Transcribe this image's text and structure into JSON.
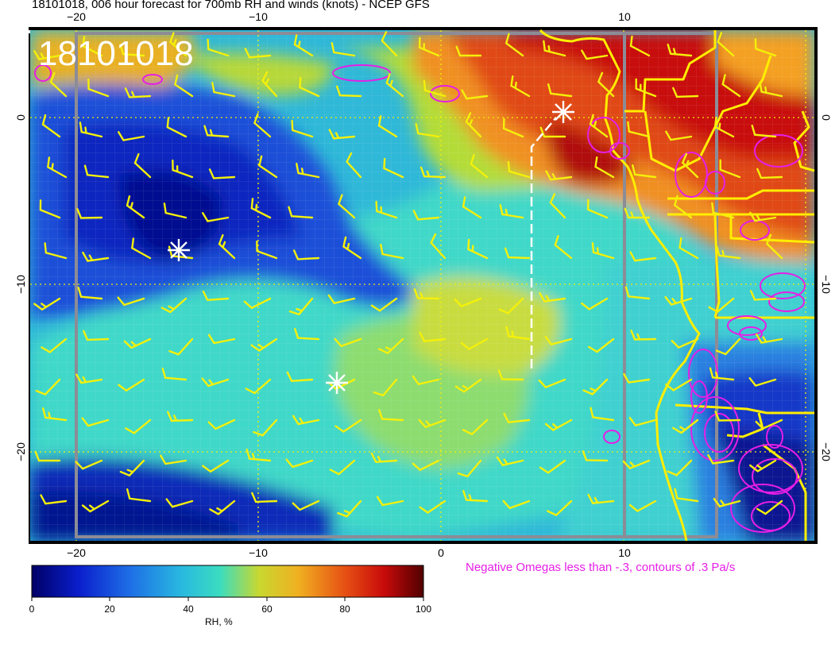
{
  "title": "18101018, 006 hour forecast for 700mb RH and winds (knots) - NCEP GFS",
  "stamp": "18101018",
  "axes": {
    "top_ticks": [
      "−20",
      "−10",
      "10"
    ],
    "bottom_ticks": [
      "−20",
      "−10",
      "0",
      "10"
    ],
    "left_ticks": [
      "0",
      "−10",
      "−20"
    ],
    "right_ticks": [
      "0",
      "−10",
      "−20"
    ]
  },
  "colorbar": {
    "label": "RH, %",
    "ticks": [
      "0",
      "20",
      "40",
      "60",
      "80",
      "100"
    ],
    "colors": [
      "#0a0a8c",
      "#1f4fd8",
      "#2aa0e0",
      "#35d6c8",
      "#a8dc3c",
      "#e0d820",
      "#f08a18",
      "#d82410",
      "#640000"
    ]
  },
  "omega_note": "Negative Omegas less than -.3, contours of .3 Pa/s",
  "colors": {
    "wind_barbs": "#f4f00a",
    "coast": "#ffee00",
    "omega": "#e61ee6",
    "grid_dotted": "#f4f00a"
  },
  "markers": [
    "white-star",
    "white-star",
    "white-star"
  ]
}
